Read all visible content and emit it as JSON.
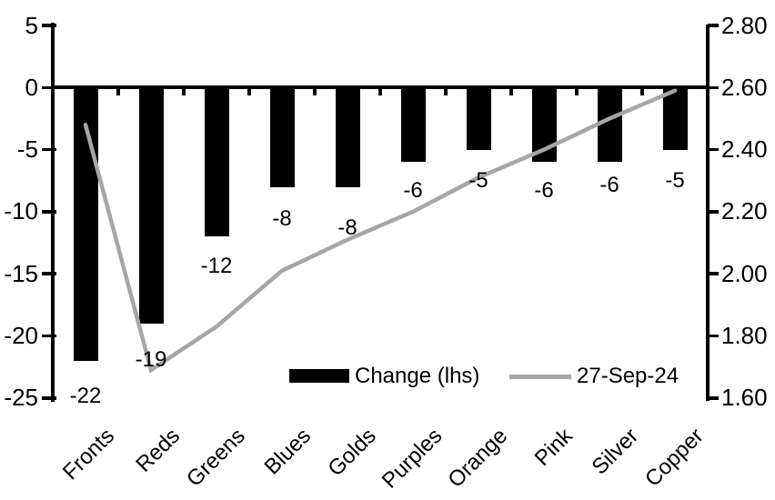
{
  "chart_data": {
    "type": "combo",
    "title": "",
    "categories": [
      "Fronts",
      "Reds",
      "Greens",
      "Blues",
      "Golds",
      "Purples",
      "Orange",
      "Pink",
      "Silver",
      "Copper"
    ],
    "series": [
      {
        "name": "Change (lhs)",
        "type": "bar",
        "axis": "left",
        "color": "#000000",
        "values": [
          -22,
          -19,
          -12,
          -8,
          -8,
          -6,
          -5,
          -6,
          -6,
          -5
        ],
        "data_labels": [
          "-22",
          "-19",
          "-12",
          "-8",
          "-8",
          "-6",
          "-5",
          "-6",
          "-6",
          "-5"
        ]
      },
      {
        "name": "27-Sep-24",
        "type": "line",
        "axis": "right",
        "color": "#a6a6a6",
        "values": [
          2.48,
          1.69,
          1.83,
          2.01,
          2.11,
          2.2,
          2.31,
          2.4,
          2.5,
          2.59
        ]
      }
    ],
    "left_axis": {
      "min": -25,
      "max": 5,
      "step": 5,
      "tick_labels": [
        "5",
        "0",
        "-5",
        "-10",
        "-15",
        "-20",
        "-25"
      ]
    },
    "right_axis": {
      "min": 1.6,
      "max": 2.8,
      "step": 0.2,
      "tick_labels": [
        "2.80",
        "2.60",
        "2.40",
        "2.20",
        "2.00",
        "1.80",
        "1.60"
      ]
    },
    "grid": false,
    "legend_position": "bottom-inside"
  },
  "legend": {
    "bar_label": "Change (lhs)",
    "line_label": "27-Sep-24"
  },
  "colors": {
    "bar": "#000000",
    "line": "#a6a6a6",
    "axis": "#000000",
    "background": "#ffffff"
  }
}
